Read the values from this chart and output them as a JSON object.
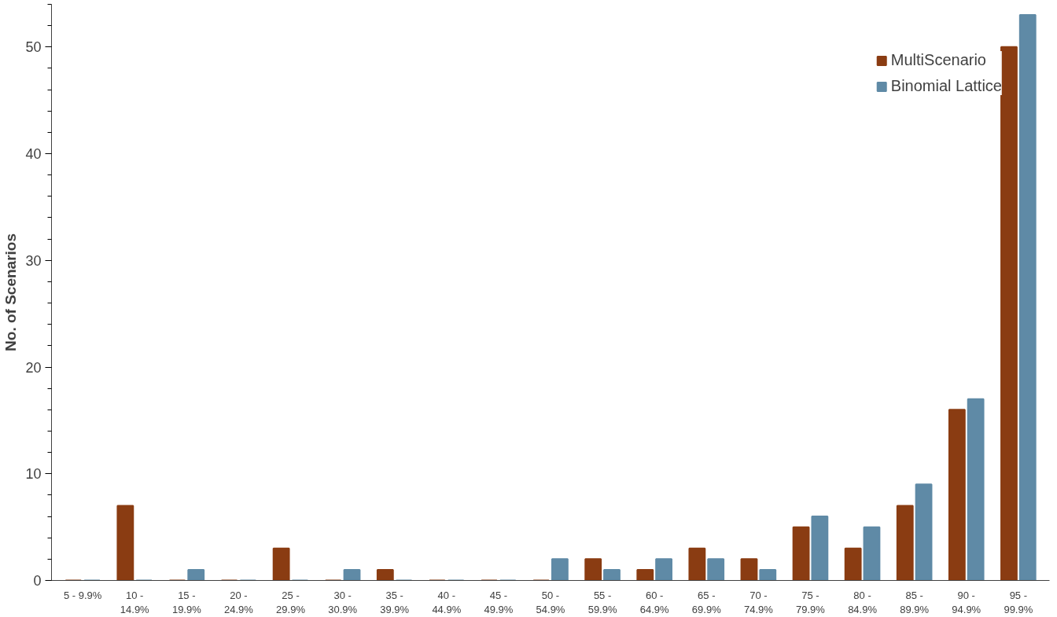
{
  "chart_data": {
    "type": "bar",
    "ylabel": "No. of Scenarios",
    "categories": [
      "5 - 9.9%",
      "10 -\n14.9%",
      "15 -\n19.9%",
      "20 -\n24.9%",
      "25 -\n29.9%",
      "30 -\n30.9%",
      "35 -\n39.9%",
      "40 -\n44.9%",
      "45 -\n49.9%",
      "50 -\n54.9%",
      "55 -\n59.9%",
      "60 -\n64.9%",
      "65 -\n69.9%",
      "70 -\n74.9%",
      "75 -\n79.9%",
      "80 -\n84.9%",
      "85 -\n89.9%",
      "90 -\n94.9%",
      "95 -\n99.9%"
    ],
    "series": [
      {
        "name": "MultiScenario",
        "color": "#8a3c12",
        "values": [
          0,
          7,
          0,
          0,
          3,
          0,
          1,
          0,
          0,
          0,
          2,
          1,
          3,
          2,
          5,
          3,
          7,
          16,
          50
        ]
      },
      {
        "name": "Binomial Lattice",
        "color": "#5f8aa6",
        "values": [
          0,
          0,
          1,
          0,
          0,
          1,
          0,
          0,
          0,
          2,
          1,
          2,
          2,
          1,
          6,
          5,
          9,
          17,
          53
        ]
      }
    ],
    "ylim": [
      0,
      54
    ],
    "yticks": [
      0,
      10,
      20,
      30,
      40,
      50
    ],
    "grid": false,
    "legend": "top right"
  }
}
